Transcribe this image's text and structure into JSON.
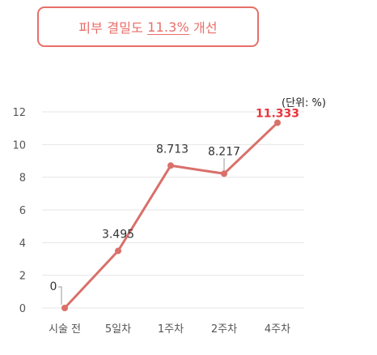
{
  "headline": {
    "prefix": "피부 결밀도",
    "value": "11.3%",
    "suffix": "개선"
  },
  "chart_data": {
    "type": "line",
    "unit_label": "(단위: %)",
    "categories": [
      "시술 전",
      "5일차",
      "1주차",
      "2주차",
      "4주차"
    ],
    "series": [
      {
        "values": [
          0,
          3.495,
          8.713,
          8.217,
          11.333
        ],
        "data_labels": [
          "0",
          "3.495",
          "8.713",
          "8.217",
          "11.333"
        ]
      }
    ],
    "ylim": [
      0,
      12
    ],
    "y_ticks": [
      0,
      2,
      4,
      6,
      8,
      10,
      12
    ],
    "grid": true,
    "legend": "none",
    "colors": {
      "line": "#d9706a",
      "highlight_label": "#e8343c",
      "grid": "#e6e6e6",
      "tick_text": "#555555"
    }
  }
}
